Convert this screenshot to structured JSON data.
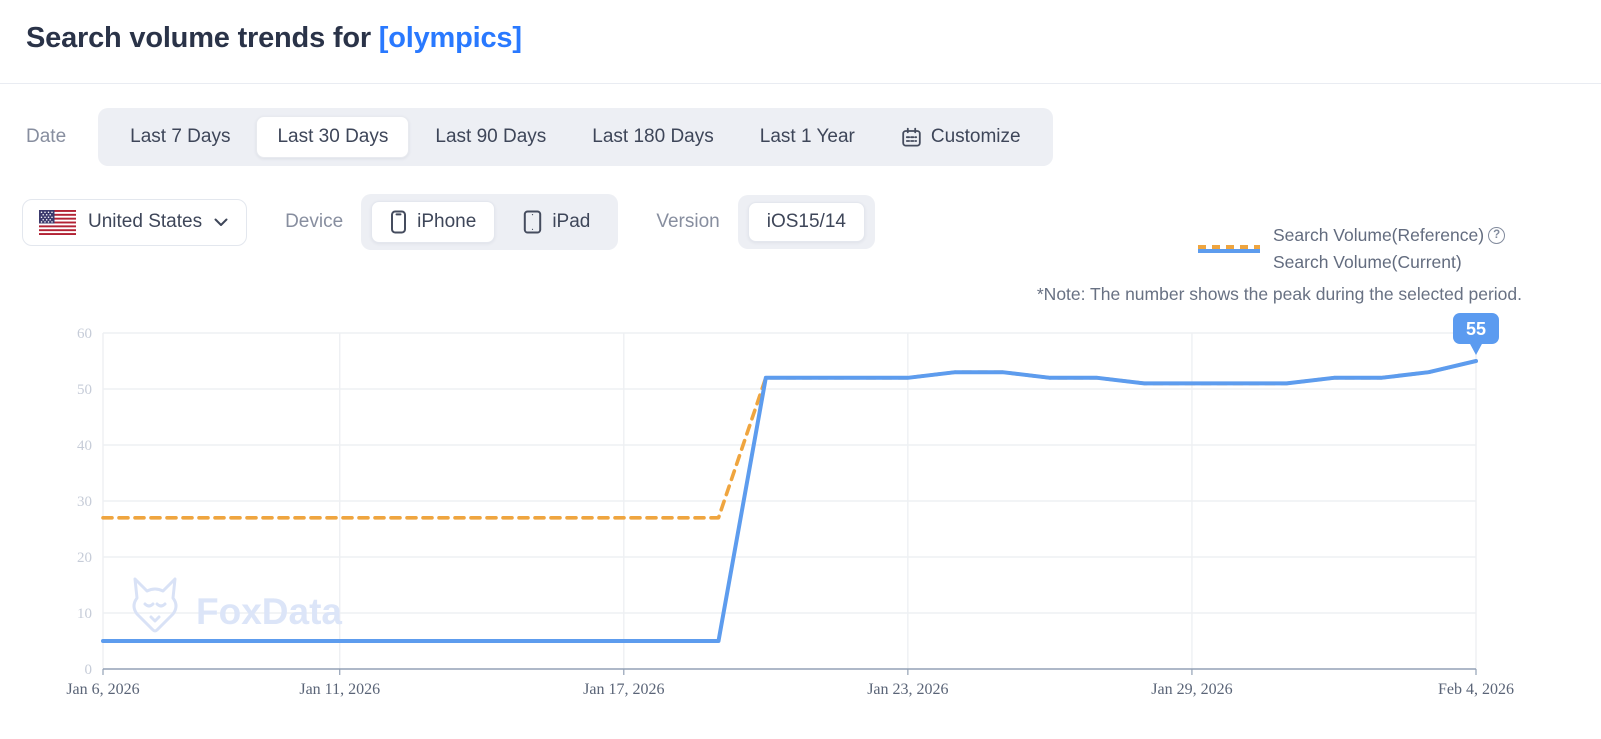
{
  "header": {
    "title_prefix": "Search volume trends for ",
    "keyword": "[olympics]"
  },
  "filters": {
    "date_label": "Date",
    "date_tabs": [
      {
        "label": "Last 7 Days",
        "active": false
      },
      {
        "label": "Last 30 Days",
        "active": true
      },
      {
        "label": "Last 90 Days",
        "active": false
      },
      {
        "label": "Last 180 Days",
        "active": false
      },
      {
        "label": "Last 1 Year",
        "active": false
      },
      {
        "label": "Customize",
        "active": false,
        "icon": "calendar-icon"
      }
    ],
    "country": {
      "value": "United States",
      "flag": "us-flag-icon"
    },
    "device_label": "Device",
    "devices": [
      {
        "label": "iPhone",
        "active": true,
        "icon": "iphone-icon"
      },
      {
        "label": "iPad",
        "active": false,
        "icon": "ipad-icon"
      }
    ],
    "version_label": "Version",
    "versions": [
      {
        "label": "iOS15/14",
        "active": true
      }
    ]
  },
  "legend": {
    "reference_label": "Search Volume(Reference)",
    "current_label": "Search Volume(Current)",
    "help_icon": "?",
    "note": "*Note: The number shows the peak during the selected period."
  },
  "watermark": "FoxData",
  "chart_data": {
    "type": "line",
    "x": [
      "Jan 6",
      "Jan 7",
      "Jan 8",
      "Jan 9",
      "Jan 10",
      "Jan 11",
      "Jan 12",
      "Jan 13",
      "Jan 14",
      "Jan 15",
      "Jan 16",
      "Jan 17",
      "Jan 18",
      "Jan 19",
      "Jan 20",
      "Jan 21",
      "Jan 22",
      "Jan 23",
      "Jan 24",
      "Jan 25",
      "Jan 26",
      "Jan 27",
      "Jan 28",
      "Jan 29",
      "Jan 30",
      "Jan 31",
      "Feb 1",
      "Feb 2",
      "Feb 3",
      "Feb 4"
    ],
    "x_tick_labels": [
      "Jan 6, 2026",
      "Jan 11, 2026",
      "Jan 17, 2026",
      "Jan 23, 2026",
      "Jan 29, 2026",
      "Feb 4, 2026"
    ],
    "x_tick_indices": [
      0,
      5,
      11,
      17,
      23,
      29
    ],
    "y_ticks": [
      0,
      10,
      20,
      30,
      40,
      50,
      60
    ],
    "ylim": [
      0,
      60
    ],
    "grid": true,
    "legend_position": "top-right",
    "series": [
      {
        "name": "Search Volume(Reference)",
        "style": "dashed",
        "color": "#efa53f",
        "values": [
          27,
          27,
          27,
          27,
          27,
          27,
          27,
          27,
          27,
          27,
          27,
          27,
          27,
          27,
          52,
          52,
          52,
          52,
          53,
          53,
          52,
          52,
          51,
          51,
          51,
          51,
          52,
          52,
          53,
          55
        ]
      },
      {
        "name": "Search Volume(Current)",
        "style": "solid",
        "color": "#5d9cee",
        "values": [
          5,
          5,
          5,
          5,
          5,
          5,
          5,
          5,
          5,
          5,
          5,
          5,
          5,
          5,
          52,
          52,
          52,
          52,
          53,
          53,
          52,
          52,
          51,
          51,
          51,
          51,
          52,
          52,
          53,
          55
        ]
      }
    ],
    "peak_label": "55",
    "colors": {
      "axis_line": "#93a1b5",
      "grid_line": "#eef0f3",
      "badge": "#5b9bf0"
    }
  }
}
